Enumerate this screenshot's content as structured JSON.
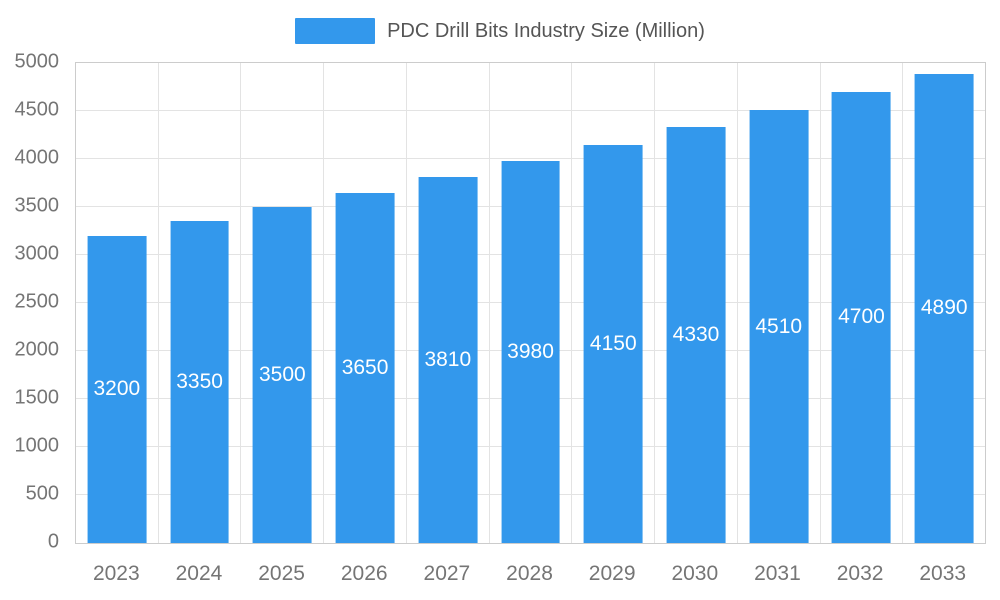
{
  "legend": {
    "label": "PDC Drill Bits Industry Size (Million)"
  },
  "chart_data": {
    "type": "bar",
    "title": "PDC Drill Bits Industry Size (Million)",
    "categories": [
      "2023",
      "2024",
      "2025",
      "2026",
      "2027",
      "2028",
      "2029",
      "2030",
      "2031",
      "2032",
      "2033"
    ],
    "values": [
      3200,
      3350,
      3500,
      3650,
      3810,
      3980,
      4150,
      4330,
      4510,
      4700,
      4890
    ],
    "xlabel": "",
    "ylabel": "",
    "ylim": [
      0,
      5000
    ],
    "ytick_interval": 500,
    "yticks": [
      0,
      500,
      1000,
      1500,
      2000,
      2500,
      3000,
      3500,
      4000,
      4500,
      5000
    ],
    "bar_color": "#3398EC",
    "value_label_color": "#ffffff",
    "axis_label_color": "#757575",
    "grid": true,
    "legend_position": "top",
    "value_label_position": "center-of-bar"
  }
}
